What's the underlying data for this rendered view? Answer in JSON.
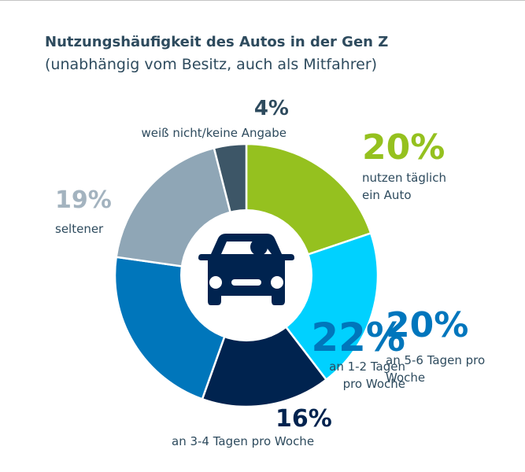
{
  "title": "Nutzungshäufigkeit des Autos in der Gen Z",
  "subtitle": "(unabhängig vom Besitz, auch als Mitfahrer)",
  "center_icon": "car-with-driver-icon",
  "chart_data": {
    "type": "pie",
    "donut": true,
    "title": "Nutzungshäufigkeit des Autos in der Gen Z",
    "subtitle": "(unabhängig vom Besitz, auch als Mitfahrer)",
    "slices": [
      {
        "value": 20,
        "pct_label": "20%",
        "label": [
          "nutzen täglich",
          "ein Auto"
        ],
        "color": "#95c11f",
        "label_color": "#95c11f"
      },
      {
        "value": 20,
        "pct_label": "20%",
        "label": [
          "an 5-6 Tagen pro",
          "Woche"
        ],
        "color": "#00d1ff",
        "label_color": "#0076bd"
      },
      {
        "value": 16,
        "pct_label": "16%",
        "label": [
          "an 3-4 Tagen pro Woche"
        ],
        "color": "#00234f",
        "label_color": "#00234f"
      },
      {
        "value": 22,
        "pct_label": "22%",
        "label": [
          "an 1-2 Tagen",
          "pro Woche"
        ],
        "color": "#0076bb",
        "label_color": "#0076bb"
      },
      {
        "value": 19,
        "pct_label": "19%",
        "label": [
          "seltener"
        ],
        "color": "#8fa6b6",
        "label_color": "#a3b3bf"
      },
      {
        "value": 4,
        "pct_label": "4%",
        "label": [
          "weiß nicht/keine Angabe"
        ],
        "color": "#3d5667",
        "label_color": "#2e4b5e"
      }
    ]
  }
}
